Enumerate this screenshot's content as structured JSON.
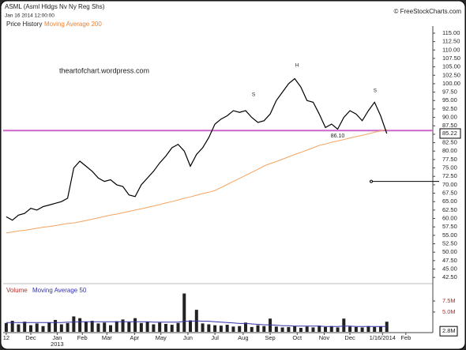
{
  "chart_data": [
    {
      "type": "line",
      "title": "ASML (Asml Hldgs Nv Ny Reg Shs)",
      "subtitle": "Jan 16 2014 12:00:00",
      "source": "© FreeStockCharts.com",
      "watermark": "theartofchart.wordpress.com",
      "x": [
        0,
        1,
        2,
        3,
        4,
        5,
        6,
        7,
        8,
        9,
        10,
        11,
        12,
        13,
        14,
        15,
        16,
        17,
        18,
        19,
        20,
        21,
        22,
        23,
        24,
        25,
        26,
        27,
        28,
        29,
        30,
        31,
        32,
        33,
        34,
        35,
        36,
        37,
        38,
        39,
        40,
        41,
        42,
        43,
        44,
        45,
        46,
        47,
        48,
        49,
        50,
        51,
        52,
        53,
        54,
        55,
        56,
        57,
        58,
        59,
        60,
        61,
        62
      ],
      "xlim": [
        -0.5,
        69.5
      ],
      "xticks": [
        {
          "value": 0,
          "label": "12"
        },
        {
          "value": 4,
          "label": "Dec"
        },
        {
          "value": 8.3,
          "label": "Jan"
        },
        {
          "value": 12.4,
          "label": "Feb"
        },
        {
          "value": 16.4,
          "label": "Mar"
        },
        {
          "value": 20.9,
          "label": "Apr"
        },
        {
          "value": 25.2,
          "label": "May"
        },
        {
          "value": 29.6,
          "label": "Jun"
        },
        {
          "value": 34,
          "label": "Jul"
        },
        {
          "value": 38.6,
          "label": "Aug"
        },
        {
          "value": 43,
          "label": "Sep"
        },
        {
          "value": 47.4,
          "label": "Oct"
        },
        {
          "value": 51.8,
          "label": "Nov"
        },
        {
          "value": 56,
          "label": "Dec"
        },
        {
          "value": 61.3,
          "label": "1/16/2014"
        },
        {
          "value": 65.1,
          "label": "Feb"
        }
      ],
      "year_labels": [
        {
          "value": 8.3,
          "label": "2013"
        }
      ],
      "ylim": [
        40.9,
        117.1
      ],
      "yticks": [
        {
          "value": 42.5,
          "label": "42.50"
        },
        {
          "value": 45,
          "label": "45.00"
        },
        {
          "value": 47.5,
          "label": "47.50"
        },
        {
          "value": 50,
          "label": "50.00"
        },
        {
          "value": 52.5,
          "label": "52.50"
        },
        {
          "value": 55,
          "label": "55.00"
        },
        {
          "value": 57.5,
          "label": "57.50"
        },
        {
          "value": 60,
          "label": "60.00"
        },
        {
          "value": 62.5,
          "label": "62.50"
        },
        {
          "value": 65,
          "label": "65.00"
        },
        {
          "value": 67.5,
          "label": "67.50"
        },
        {
          "value": 70,
          "label": "70.00"
        },
        {
          "value": 72.5,
          "label": "72.50"
        },
        {
          "value": 75,
          "label": "75.00"
        },
        {
          "value": 77.5,
          "label": "77.50"
        },
        {
          "value": 80,
          "label": "80.00"
        },
        {
          "value": 82.5,
          "label": "82.50"
        },
        {
          "value": 85,
          "label": "85.00"
        },
        {
          "value": 87.5,
          "label": "87.50"
        },
        {
          "value": 90,
          "label": "90.00"
        },
        {
          "value": 92.5,
          "label": "92.50"
        },
        {
          "value": 95,
          "label": "95.00"
        },
        {
          "value": 97.5,
          "label": "97.50"
        },
        {
          "value": 100,
          "label": "100.00"
        },
        {
          "value": 102.5,
          "label": "102.50"
        },
        {
          "value": 105,
          "label": "105.00"
        },
        {
          "value": 107.5,
          "label": "107.50"
        },
        {
          "value": 110,
          "label": "110.00"
        },
        {
          "value": 112.5,
          "label": "112.50"
        },
        {
          "value": 115,
          "label": "115.00"
        }
      ],
      "series": [
        {
          "name": "Price History",
          "color": "#000000",
          "values": [
            60.5,
            59.5,
            61,
            61.5,
            63,
            62.5,
            63.5,
            64,
            64.5,
            65,
            66,
            75,
            77,
            75.5,
            74,
            72,
            71,
            71.5,
            70,
            69.5,
            67,
            66.5,
            70,
            72,
            74,
            76.5,
            78.5,
            81,
            82,
            80,
            75.5,
            79,
            81,
            84,
            88,
            89.5,
            90.5,
            92,
            91.5,
            92,
            90,
            88.5,
            89,
            91,
            95,
            97.5,
            100,
            101.5,
            99,
            95,
            94.5,
            91,
            87,
            88,
            86.5,
            90,
            92,
            91,
            89,
            92,
            94.5,
            90.5,
            85.22
          ]
        },
        {
          "name": "Moving Average 200",
          "color": "#f4a460",
          "values": [
            55.7,
            56.0,
            56.3,
            56.5,
            56.8,
            57.1,
            57.4,
            57.6,
            57.9,
            58.2,
            58.5,
            58.7,
            59.0,
            59.4,
            59.8,
            60.2,
            60.6,
            61.0,
            61.3,
            61.7,
            62.1,
            62.5,
            62.9,
            63.3,
            63.7,
            64.1,
            64.6,
            65.0,
            65.5,
            66.0,
            66.4,
            66.9,
            67.4,
            67.8,
            68.3,
            69.2,
            70.1,
            71.0,
            71.9,
            72.8,
            73.7,
            74.6,
            75.6,
            76.3,
            76.9,
            77.6,
            78.3,
            79.0,
            79.6,
            80.3,
            81.0,
            81.7,
            82.1,
            82.6,
            83.0,
            83.4,
            83.9,
            84.3,
            84.7,
            85.1,
            85.6,
            86.0,
            86.4
          ]
        }
      ],
      "support": {
        "value": 86.1,
        "label": "86.10",
        "color": "#cc66cc"
      },
      "hline": 71,
      "annotations": [
        {
          "text": "S",
          "x": 40.3,
          "y": 96.7
        },
        {
          "text": "H",
          "x": 47.4,
          "y": 105.4
        },
        {
          "text": "S",
          "x": 60.1,
          "y": 97.9
        }
      ]
    },
    {
      "type": "bar",
      "ylim": [
        0.5,
        10.9
      ],
      "yticks": [
        {
          "value": 5,
          "label": "5.0M"
        },
        {
          "value": 7.5,
          "label": "7.5M"
        }
      ],
      "series": [
        {
          "name": "Volume",
          "color": "#222222",
          "values": [
            2.5,
            3.0,
            2.2,
            2.8,
            2.0,
            2.4,
            1.8,
            2.6,
            3.2,
            2.2,
            2.5,
            4.0,
            3.6,
            2.8,
            3.0,
            2.4,
            2.6,
            2.0,
            2.9,
            3.3,
            2.7,
            3.6,
            2.5,
            2.8,
            2.2,
            2.6,
            2.3,
            2.1,
            2.5,
            9.2,
            3.1,
            5.5,
            2.4,
            2.2,
            2.0,
            1.9,
            2.1,
            1.7,
            1.8,
            2.6,
            1.6,
            2.0,
            1.8,
            3.5,
            1.7,
            1.5,
            1.6,
            1.8,
            1.4,
            1.7,
            1.5,
            1.9,
            1.6,
            1.8,
            1.5,
            3.5,
            1.7,
            1.6,
            1.5,
            1.8,
            1.6,
            1.7,
            2.8
          ],
          "value_labels": [
            null,
            null,
            null,
            null,
            null,
            null,
            null,
            null,
            null,
            null,
            null,
            null,
            null,
            null,
            null,
            null,
            null,
            null,
            null,
            null,
            null,
            null,
            null,
            null,
            null,
            null,
            null,
            null,
            null,
            null,
            null,
            null,
            null,
            null,
            null,
            null,
            null,
            null,
            null,
            null,
            null,
            null,
            null,
            null,
            null,
            null,
            null,
            null,
            null,
            null,
            null,
            null,
            null,
            null,
            null,
            null,
            null,
            null,
            null,
            null,
            null,
            null,
            "2.8M"
          ]
        },
        {
          "name": "Moving Average 50",
          "color": "#3333aa",
          "values": [
            2.6,
            2.6,
            2.6,
            2.6,
            2.6,
            2.6,
            2.6,
            2.6,
            2.6,
            2.6,
            2.7,
            2.7,
            2.8,
            2.8,
            2.8,
            2.8,
            2.8,
            2.8,
            2.8,
            2.8,
            2.8,
            2.8,
            2.8,
            2.8,
            2.7,
            2.7,
            2.7,
            2.7,
            2.7,
            2.9,
            2.9,
            3.0,
            2.9,
            2.9,
            2.8,
            2.7,
            2.6,
            2.5,
            2.4,
            2.4,
            2.3,
            2.2,
            2.1,
            2.1,
            2.0,
            1.9,
            1.9,
            1.8,
            1.8,
            1.8,
            1.8,
            1.8,
            1.7,
            1.7,
            1.7,
            1.8,
            1.8,
            1.7,
            1.7,
            1.7,
            1.7,
            1.7,
            1.7
          ]
        }
      ]
    }
  ]
}
